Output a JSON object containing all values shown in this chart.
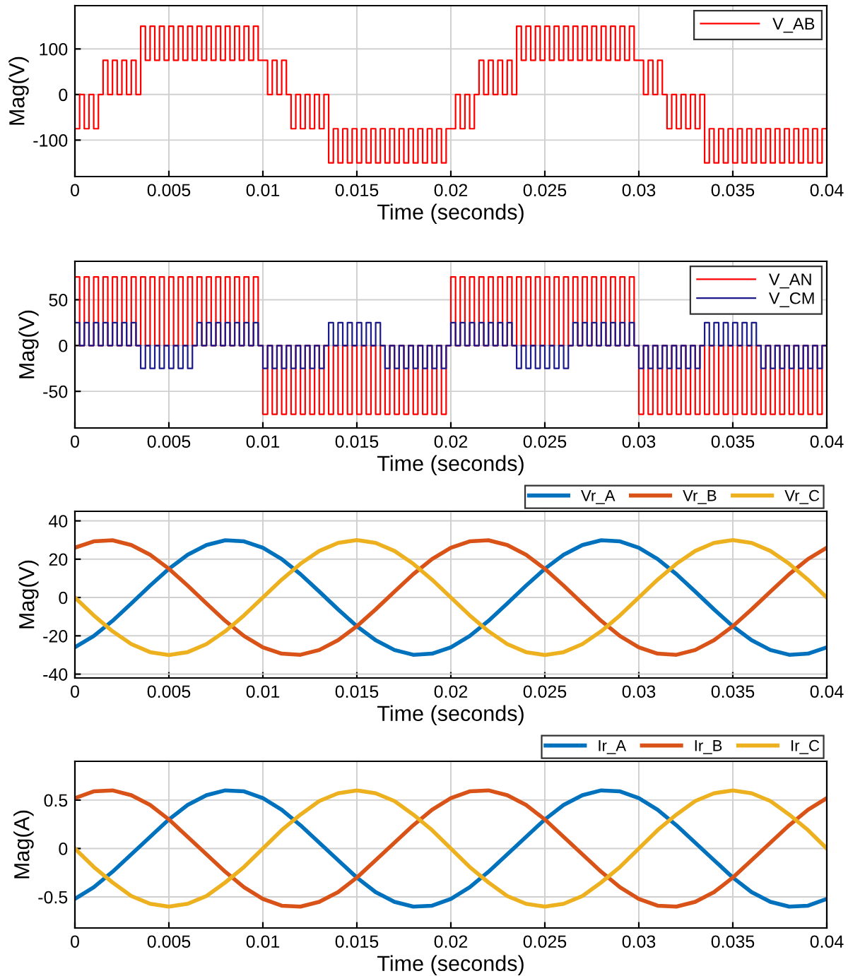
{
  "chart_data": [
    {
      "type": "step",
      "xlabel": "Time (seconds)",
      "ylabel": "Mag(V)",
      "xlim": [
        0,
        0.04
      ],
      "ylim": [
        -180,
        195
      ],
      "xticks": [
        0,
        0.005,
        0.01,
        0.015,
        0.02,
        0.025,
        0.03,
        0.035,
        0.04
      ],
      "yticks": [
        -100,
        0,
        100
      ],
      "grid": true,
      "legend": "top right",
      "x": [
        0,
        0.00025,
        0.0005,
        0.00075,
        0.001,
        0.00125,
        0.0015,
        0.00175,
        0.002,
        0.00225,
        0.0025,
        0.00275,
        0.003,
        0.00325,
        0.0035,
        0.00375,
        0.004,
        0.00425,
        0.0045,
        0.00475,
        0.005,
        0.00525,
        0.0055,
        0.00575,
        0.006,
        0.00625,
        0.0065,
        0.00675,
        0.007,
        0.00725,
        0.0075,
        0.00775,
        0.008,
        0.00825,
        0.0085,
        0.00875,
        0.009,
        0.00925,
        0.0095,
        0.00975,
        0.01,
        0.01025,
        0.0105,
        0.01075,
        0.011,
        0.01125,
        0.0115,
        0.01175,
        0.012,
        0.01225,
        0.0125,
        0.01275,
        0.013,
        0.01325,
        0.0135,
        0.01375,
        0.014,
        0.01425,
        0.0145,
        0.01475,
        0.015,
        0.01525,
        0.0155,
        0.01575,
        0.016,
        0.01625,
        0.0165,
        0.01675,
        0.017,
        0.01725,
        0.0175,
        0.01775,
        0.018,
        0.01825,
        0.0185,
        0.01875,
        0.019,
        0.01925,
        0.0195,
        0.01975,
        0.02,
        0.02025,
        0.0205,
        0.02075,
        0.021,
        0.02125,
        0.0215,
        0.02175,
        0.022,
        0.02225,
        0.0225,
        0.02275,
        0.023,
        0.02325,
        0.0235,
        0.02375,
        0.024,
        0.02425,
        0.0245,
        0.02475,
        0.025,
        0.02525,
        0.0255,
        0.02575,
        0.026,
        0.02625,
        0.0265,
        0.02675,
        0.027,
        0.02725,
        0.0275,
        0.02775,
        0.028,
        0.02825,
        0.0285,
        0.02875,
        0.029,
        0.02925,
        0.0295,
        0.02975,
        0.03,
        0.03025,
        0.0305,
        0.03075,
        0.031,
        0.03125,
        0.0315,
        0.03175,
        0.032,
        0.03225,
        0.0325,
        0.03275,
        0.033,
        0.03325,
        0.0335,
        0.03375,
        0.034,
        0.03425,
        0.0345,
        0.03475,
        0.035,
        0.03525,
        0.0355,
        0.03575,
        0.036,
        0.03625,
        0.0365,
        0.03675,
        0.037,
        0.03725,
        0.0375,
        0.03775,
        0.038,
        0.03825,
        0.0385,
        0.03875,
        0.039,
        0.03925,
        0.0395,
        0.03975,
        0.04
      ],
      "series": [
        {
          "name": "V_AB",
          "color": "#ff0000",
          "values": [
            -75,
            0,
            -75,
            0,
            -75,
            0,
            75,
            0,
            75,
            0,
            75,
            0,
            75,
            0,
            150,
            75,
            150,
            75,
            150,
            75,
            150,
            75,
            150,
            75,
            150,
            75,
            150,
            75,
            150,
            75,
            150,
            75,
            150,
            75,
            150,
            75,
            150,
            75,
            150,
            75,
            75,
            0,
            75,
            0,
            75,
            0,
            -75,
            0,
            -75,
            0,
            -75,
            0,
            -75,
            0,
            -150,
            -75,
            -150,
            -75,
            -150,
            -75,
            -150,
            -75,
            -150,
            -75,
            -150,
            -75,
            -150,
            -75,
            -150,
            -75,
            -150,
            -75,
            -150,
            -75,
            -150,
            -75,
            -150,
            -75,
            -150,
            -75,
            -75,
            0,
            -75,
            0,
            -75,
            0,
            75,
            0,
            75,
            0,
            75,
            0,
            75,
            0,
            150,
            75,
            150,
            75,
            150,
            75,
            150,
            75,
            150,
            75,
            150,
            75,
            150,
            75,
            150,
            75,
            150,
            75,
            150,
            75,
            150,
            75,
            150,
            75,
            150,
            75,
            75,
            0,
            75,
            0,
            75,
            0,
            -75,
            0,
            -75,
            0,
            -75,
            0,
            -75,
            0,
            -150,
            -75,
            -150,
            -75,
            -150,
            -75,
            -150,
            -75,
            -150,
            -75,
            -150,
            -75,
            -150,
            -75,
            -150,
            -75,
            -150,
            -75,
            -150,
            -75,
            -150,
            -75,
            -150,
            -75,
            -150,
            -75,
            0
          ]
        }
      ]
    },
    {
      "type": "step",
      "xlabel": "Time (seconds)",
      "ylabel": "Mag(V)",
      "xlim": [
        0,
        0.04
      ],
      "ylim": [
        -90,
        92
      ],
      "xticks": [
        0,
        0.005,
        0.01,
        0.015,
        0.02,
        0.025,
        0.03,
        0.035,
        0.04
      ],
      "yticks": [
        -50,
        0,
        50
      ],
      "grid": true,
      "legend": "top right",
      "x": [
        0,
        0.00025,
        0.0005,
        0.00075,
        0.001,
        0.00125,
        0.0015,
        0.00175,
        0.002,
        0.00225,
        0.0025,
        0.00275,
        0.003,
        0.00325,
        0.0035,
        0.00375,
        0.004,
        0.00425,
        0.0045,
        0.00475,
        0.005,
        0.00525,
        0.0055,
        0.00575,
        0.006,
        0.00625,
        0.0065,
        0.00675,
        0.007,
        0.00725,
        0.0075,
        0.00775,
        0.008,
        0.00825,
        0.0085,
        0.00875,
        0.009,
        0.00925,
        0.0095,
        0.00975,
        0.01,
        0.01025,
        0.0105,
        0.01075,
        0.011,
        0.01125,
        0.0115,
        0.01175,
        0.012,
        0.01225,
        0.0125,
        0.01275,
        0.013,
        0.01325,
        0.0135,
        0.01375,
        0.014,
        0.01425,
        0.0145,
        0.01475,
        0.015,
        0.01525,
        0.0155,
        0.01575,
        0.016,
        0.01625,
        0.0165,
        0.01675,
        0.017,
        0.01725,
        0.0175,
        0.01775,
        0.018,
        0.01825,
        0.0185,
        0.01875,
        0.019,
        0.01925,
        0.0195,
        0.01975,
        0.02,
        0.02025,
        0.0205,
        0.02075,
        0.021,
        0.02125,
        0.0215,
        0.02175,
        0.022,
        0.02225,
        0.0225,
        0.02275,
        0.023,
        0.02325,
        0.0235,
        0.02375,
        0.024,
        0.02425,
        0.0245,
        0.02475,
        0.025,
        0.02525,
        0.0255,
        0.02575,
        0.026,
        0.02625,
        0.0265,
        0.02675,
        0.027,
        0.02725,
        0.0275,
        0.02775,
        0.028,
        0.02825,
        0.0285,
        0.02875,
        0.029,
        0.02925,
        0.0295,
        0.02975,
        0.03,
        0.03025,
        0.0305,
        0.03075,
        0.031,
        0.03125,
        0.0315,
        0.03175,
        0.032,
        0.03225,
        0.0325,
        0.03275,
        0.033,
        0.03325,
        0.0335,
        0.03375,
        0.034,
        0.03425,
        0.0345,
        0.03475,
        0.035,
        0.03525,
        0.0355,
        0.03575,
        0.036,
        0.03625,
        0.0365,
        0.03675,
        0.037,
        0.03725,
        0.0375,
        0.03775,
        0.038,
        0.03825,
        0.0385,
        0.03875,
        0.039,
        0.03925,
        0.0395,
        0.03975,
        0.04
      ],
      "series": [
        {
          "name": "V_AN",
          "color": "#ff0000",
          "values": [
            75,
            0,
            75,
            0,
            75,
            0,
            75,
            0,
            75,
            0,
            75,
            0,
            75,
            0,
            75,
            0,
            75,
            0,
            75,
            0,
            75,
            0,
            75,
            0,
            75,
            0,
            75,
            0,
            75,
            0,
            75,
            0,
            75,
            0,
            75,
            0,
            75,
            0,
            75,
            0,
            -75,
            0,
            -75,
            0,
            -75,
            0,
            -75,
            0,
            -75,
            0,
            -75,
            0,
            -75,
            0,
            -75,
            0,
            -75,
            0,
            -75,
            0,
            -75,
            0,
            -75,
            0,
            -75,
            0,
            -75,
            0,
            -75,
            0,
            -75,
            0,
            -75,
            0,
            -75,
            0,
            -75,
            0,
            -75,
            0,
            75,
            0,
            75,
            0,
            75,
            0,
            75,
            0,
            75,
            0,
            75,
            0,
            75,
            0,
            75,
            0,
            75,
            0,
            75,
            0,
            75,
            0,
            75,
            0,
            75,
            0,
            75,
            0,
            75,
            0,
            75,
            0,
            75,
            0,
            75,
            0,
            75,
            0,
            75,
            0,
            -75,
            0,
            -75,
            0,
            -75,
            0,
            -75,
            0,
            -75,
            0,
            -75,
            0,
            -75,
            0,
            -75,
            0,
            -75,
            0,
            -75,
            0,
            -75,
            0,
            -75,
            0,
            -75,
            0,
            -75,
            0,
            -75,
            0,
            -75,
            0,
            -75,
            0,
            -75,
            0,
            -75,
            0,
            -75,
            0,
            0
          ]
        },
        {
          "name": "V_CM",
          "color": "#1a1a8c",
          "values": [
            25,
            0,
            25,
            0,
            25,
            0,
            25,
            0,
            25,
            0,
            25,
            0,
            25,
            0,
            -25,
            0,
            -25,
            0,
            -25,
            0,
            -25,
            0,
            -25,
            0,
            -25,
            0,
            25,
            0,
            25,
            0,
            25,
            0,
            25,
            0,
            25,
            0,
            25,
            0,
            25,
            0,
            -25,
            0,
            -25,
            0,
            -25,
            0,
            -25,
            0,
            -25,
            0,
            -25,
            0,
            -25,
            0,
            25,
            0,
            25,
            0,
            25,
            0,
            25,
            0,
            25,
            0,
            25,
            0,
            -25,
            0,
            -25,
            0,
            -25,
            0,
            -25,
            0,
            -25,
            0,
            -25,
            0,
            -25,
            0,
            25,
            0,
            25,
            0,
            25,
            0,
            25,
            0,
            25,
            0,
            25,
            0,
            25,
            0,
            -25,
            0,
            -25,
            0,
            -25,
            0,
            -25,
            0,
            -25,
            0,
            -25,
            0,
            25,
            0,
            25,
            0,
            25,
            0,
            25,
            0,
            25,
            0,
            25,
            0,
            25,
            0,
            -25,
            0,
            -25,
            0,
            -25,
            0,
            -25,
            0,
            -25,
            0,
            -25,
            0,
            -25,
            0,
            25,
            0,
            25,
            0,
            25,
            0,
            25,
            0,
            25,
            0,
            25,
            0,
            -25,
            0,
            -25,
            0,
            -25,
            0,
            -25,
            0,
            -25,
            0,
            -25,
            0,
            -25,
            0,
            0
          ]
        }
      ]
    },
    {
      "type": "line",
      "xlabel": "Time (seconds)",
      "ylabel": "Mag(V)",
      "xlim": [
        0,
        0.04
      ],
      "ylim": [
        -42,
        45
      ],
      "xticks": [
        0,
        0.005,
        0.01,
        0.015,
        0.02,
        0.025,
        0.03,
        0.035,
        0.04
      ],
      "yticks": [
        -40,
        -20,
        0,
        20,
        40
      ],
      "grid": true,
      "legend": "top right",
      "x": [
        0,
        0.001,
        0.002,
        0.003,
        0.004,
        0.005,
        0.006,
        0.007,
        0.008,
        0.009,
        0.01,
        0.011,
        0.012,
        0.013,
        0.014,
        0.015,
        0.016,
        0.017,
        0.018,
        0.019,
        0.02,
        0.021,
        0.022,
        0.023,
        0.024,
        0.025,
        0.026,
        0.027,
        0.028,
        0.029,
        0.03,
        0.031,
        0.032,
        0.033,
        0.034,
        0.035,
        0.036,
        0.037,
        0.038,
        0.039,
        0.04
      ],
      "series": [
        {
          "name": "Vr_A",
          "color": "#0072bd",
          "values": [
            -26.0,
            -20.1,
            -12.2,
            -3.1,
            6.2,
            15.0,
            22.3,
            27.4,
            29.9,
            29.3,
            26.0,
            20.1,
            12.2,
            3.1,
            -6.2,
            -15.0,
            -22.3,
            -27.4,
            -29.9,
            -29.3,
            -26.0,
            -20.1,
            -12.2,
            -3.1,
            6.2,
            15.0,
            22.3,
            27.4,
            29.9,
            29.3,
            26.0,
            20.1,
            12.2,
            3.1,
            -6.2,
            -15.0,
            -22.3,
            -27.4,
            -29.9,
            -29.3,
            -26.0
          ]
        },
        {
          "name": "Vr_B",
          "color": "#d95319",
          "values": [
            26.0,
            29.3,
            29.9,
            27.4,
            22.3,
            15.0,
            6.2,
            -3.1,
            -12.2,
            -20.1,
            -26.0,
            -29.3,
            -29.9,
            -27.4,
            -22.3,
            -15.0,
            -6.2,
            3.1,
            12.2,
            20.1,
            26.0,
            29.3,
            29.9,
            27.4,
            22.3,
            15.0,
            6.2,
            -3.1,
            -12.2,
            -20.1,
            -26.0,
            -29.3,
            -29.9,
            -27.4,
            -22.3,
            -15.0,
            -6.2,
            3.1,
            12.2,
            20.1,
            26.0
          ]
        },
        {
          "name": "Vr_C",
          "color": "#edb120",
          "values": [
            0,
            -9.3,
            -17.6,
            -24.3,
            -28.5,
            -30,
            -28.5,
            -24.3,
            -17.6,
            -9.3,
            0,
            9.3,
            17.6,
            24.3,
            28.5,
            30,
            28.5,
            24.3,
            17.6,
            9.3,
            0,
            -9.3,
            -17.6,
            -24.3,
            -28.5,
            -30,
            -28.5,
            -24.3,
            -17.6,
            -9.3,
            0,
            9.3,
            17.6,
            24.3,
            28.5,
            30,
            28.5,
            24.3,
            17.6,
            9.3,
            0
          ]
        }
      ]
    },
    {
      "type": "line",
      "xlabel": "Time (seconds)",
      "ylabel": "Mag(A)",
      "xlim": [
        0,
        0.04
      ],
      "ylim": [
        -0.82,
        0.9
      ],
      "xticks": [
        0,
        0.005,
        0.01,
        0.015,
        0.02,
        0.025,
        0.03,
        0.035,
        0.04
      ],
      "yticks": [
        -0.5,
        0,
        0.5
      ],
      "grid": true,
      "legend": "top right",
      "x": [
        0,
        0.001,
        0.002,
        0.003,
        0.004,
        0.005,
        0.006,
        0.007,
        0.008,
        0.009,
        0.01,
        0.011,
        0.012,
        0.013,
        0.014,
        0.015,
        0.016,
        0.017,
        0.018,
        0.019,
        0.02,
        0.021,
        0.022,
        0.023,
        0.024,
        0.025,
        0.026,
        0.027,
        0.028,
        0.029,
        0.03,
        0.031,
        0.032,
        0.033,
        0.034,
        0.035,
        0.036,
        0.037,
        0.038,
        0.039,
        0.04
      ],
      "series": [
        {
          "name": "Ir_A",
          "color": "#0072bd",
          "values": [
            -0.52,
            -0.4,
            -0.24,
            -0.06,
            0.12,
            0.3,
            0.45,
            0.55,
            0.6,
            0.59,
            0.52,
            0.4,
            0.24,
            0.06,
            -0.12,
            -0.3,
            -0.45,
            -0.55,
            -0.6,
            -0.59,
            -0.52,
            -0.4,
            -0.24,
            -0.06,
            0.12,
            0.3,
            0.45,
            0.55,
            0.6,
            0.59,
            0.52,
            0.4,
            0.24,
            0.06,
            -0.12,
            -0.3,
            -0.45,
            -0.55,
            -0.6,
            -0.59,
            -0.52
          ]
        },
        {
          "name": "Ir_B",
          "color": "#d95319",
          "values": [
            0.52,
            0.59,
            0.6,
            0.55,
            0.45,
            0.3,
            0.12,
            -0.06,
            -0.24,
            -0.4,
            -0.52,
            -0.59,
            -0.6,
            -0.55,
            -0.45,
            -0.3,
            -0.12,
            0.06,
            0.24,
            0.4,
            0.52,
            0.59,
            0.6,
            0.55,
            0.45,
            0.3,
            0.12,
            -0.06,
            -0.24,
            -0.4,
            -0.52,
            -0.59,
            -0.6,
            -0.55,
            -0.45,
            -0.3,
            -0.12,
            0.06,
            0.24,
            0.4,
            0.52
          ]
        },
        {
          "name": "Ir_C",
          "color": "#edb120",
          "values": [
            0,
            -0.19,
            -0.35,
            -0.49,
            -0.57,
            -0.6,
            -0.57,
            -0.49,
            -0.35,
            -0.19,
            0,
            0.19,
            0.35,
            0.49,
            0.57,
            0.6,
            0.57,
            0.49,
            0.35,
            0.19,
            0,
            -0.19,
            -0.35,
            -0.49,
            -0.57,
            -0.6,
            -0.57,
            -0.49,
            -0.35,
            -0.19,
            0,
            0.19,
            0.35,
            0.49,
            0.57,
            0.6,
            0.57,
            0.49,
            0.35,
            0.19,
            0
          ]
        }
      ]
    }
  ]
}
